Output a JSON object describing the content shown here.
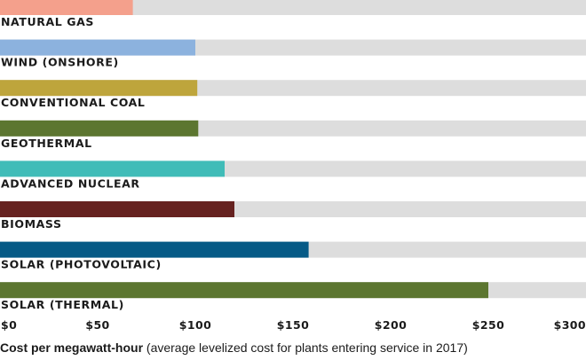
{
  "chart_data": {
    "type": "bar",
    "orientation": "horizontal",
    "categories": [
      "NATURAL GAS",
      "WIND (ONSHORE)",
      "CONVENTIONAL COAL",
      "GEOTHERMAL",
      "ADVANCED NUCLEAR",
      "BIOMASS",
      "SOLAR (PHOTOVOLTAIC)",
      "SOLAR (THERMAL)"
    ],
    "values": [
      68,
      100,
      101,
      101.5,
      115,
      120,
      158,
      250
    ],
    "colors": [
      "#f4a08c",
      "#8cb2de",
      "#bea53c",
      "#5c7630",
      "#40bcb8",
      "#662220",
      "#065a86",
      "#5c7630"
    ],
    "track_color": "#dddddd",
    "xlim": [
      0,
      300
    ],
    "ticks": [
      0,
      50,
      100,
      150,
      200,
      250,
      300
    ],
    "tick_labels": [
      "$0",
      "$50",
      "$100",
      "$150",
      "$200",
      "$250",
      "$300"
    ],
    "xlabel_bold": "Cost per megawatt-hour",
    "xlabel_rest": " (average levelized cost for plants entering service in 2017)"
  }
}
